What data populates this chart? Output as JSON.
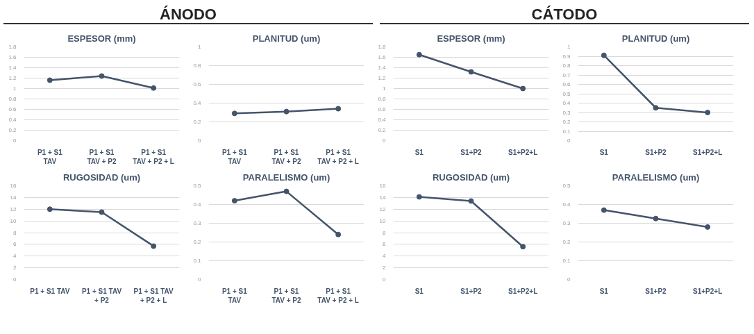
{
  "chart_data": [
    {
      "type": "line",
      "title": "ESPESOR (mm)",
      "annotations": [
        "ÁNODO"
      ],
      "categories": [
        "P1 + S1\nTAV",
        "P1 + S1\nTAV + P2",
        "P1 + S1\nTAV + P2 + L"
      ],
      "values": [
        1.16,
        1.24,
        1.01
      ],
      "color": "#44546a",
      "ylim": [
        0,
        1.8
      ],
      "yticks": [
        0,
        0.2,
        0.4,
        0.6,
        0.8,
        1,
        1.2,
        1.4,
        1.6,
        1.8
      ],
      "grid": "y",
      "marker": "circle"
    },
    {
      "type": "line",
      "title": "PLANITUD (um)",
      "categories": [
        "P1 + S1\nTAV",
        "P1 + S1\nTAV + P2",
        "P1 + S1\nTAV + P2 + L"
      ],
      "values": [
        0.29,
        0.31,
        0.34
      ],
      "color": "#44546a",
      "ylim": [
        0,
        1
      ],
      "yticks": [
        0,
        0.2,
        0.4,
        0.6,
        0.8,
        1
      ],
      "grid": "y",
      "marker": "circle"
    },
    {
      "type": "line",
      "title": "ESPESOR (mm)",
      "annotations": [
        "CÁTODO"
      ],
      "categories": [
        "S1",
        "S1+P2",
        "S1+P2+L"
      ],
      "values": [
        1.65,
        1.32,
        1.0
      ],
      "color": "#44546a",
      "ylim": [
        0,
        1.8
      ],
      "yticks": [
        0,
        0.2,
        0.4,
        0.6,
        0.8,
        1,
        1.2,
        1.4,
        1.6,
        1.8
      ],
      "grid": "y",
      "marker": "circle"
    },
    {
      "type": "line",
      "title": "PLANITUD (um)",
      "categories": [
        "S1",
        "S1+P2",
        "S1+P2+L"
      ],
      "values": [
        0.91,
        0.35,
        0.3
      ],
      "color": "#44546a",
      "ylim": [
        0,
        1
      ],
      "yticks": [
        0,
        0.1,
        0.2,
        0.3,
        0.4,
        0.5,
        0.6,
        0.7,
        0.8,
        0.9,
        1
      ],
      "grid": "y",
      "marker": "circle"
    },
    {
      "type": "line",
      "title": "RUGOSIDAD (um)",
      "categories": [
        "P1 + S1 TAV",
        "P1 + S1 TAV\n+ P2",
        "P1 + S1 TAV\n+ P2 + L"
      ],
      "values": [
        12,
        11.5,
        5.7
      ],
      "color": "#44546a",
      "ylim": [
        0,
        16
      ],
      "yticks": [
        0,
        2,
        4,
        6,
        8,
        10,
        12,
        14,
        16
      ],
      "grid": "y",
      "marker": "circle"
    },
    {
      "type": "line",
      "title": "PARALELISMO (um)",
      "categories": [
        "P1 + S1\nTAV",
        "P1 + S1\nTAV + P2",
        "P1 + S1\nTAV + P2 + L"
      ],
      "values": [
        0.42,
        0.47,
        0.24
      ],
      "color": "#44546a",
      "ylim": [
        0,
        0.5
      ],
      "yticks": [
        0,
        0.1,
        0.2,
        0.3,
        0.4,
        0.5
      ],
      "grid": "y",
      "marker": "circle"
    },
    {
      "type": "line",
      "title": "RUGOSIDAD (um)",
      "categories": [
        "S1",
        "S1+P2",
        "S1+P2+L"
      ],
      "values": [
        14.1,
        13.4,
        5.6
      ],
      "color": "#44546a",
      "ylim": [
        0,
        16
      ],
      "yticks": [
        0,
        2,
        4,
        6,
        8,
        10,
        12,
        14,
        16
      ],
      "grid": "y",
      "marker": "circle"
    },
    {
      "type": "line",
      "title": "PARALELISMO (um)",
      "categories": [
        "S1",
        "S1+P2",
        "S1+P2+L"
      ],
      "values": [
        0.37,
        0.325,
        0.28
      ],
      "color": "#44546a",
      "ylim": [
        0,
        0.5
      ],
      "yticks": [
        0,
        0.1,
        0.2,
        0.3,
        0.4,
        0.5
      ],
      "grid": "y",
      "marker": "circle"
    }
  ]
}
